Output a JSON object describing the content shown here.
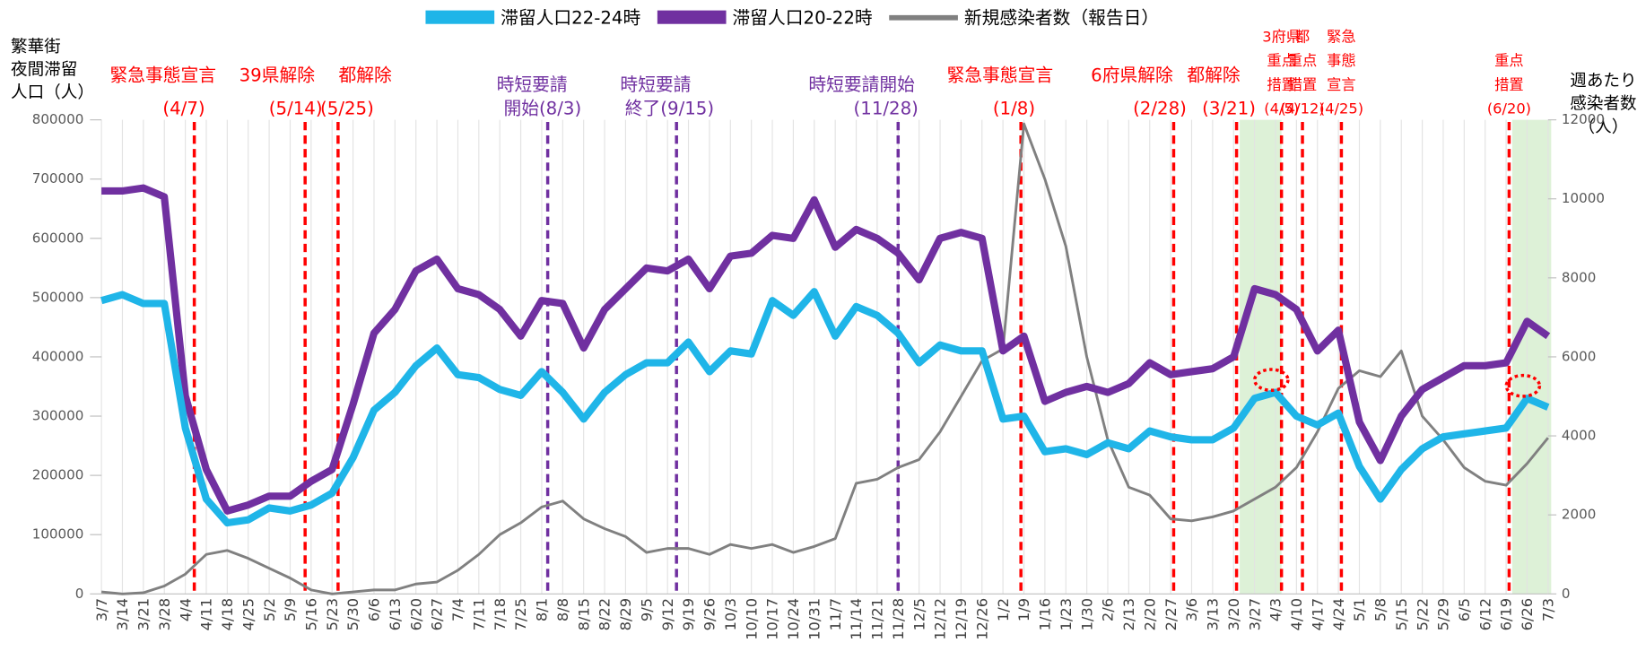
{
  "chart_data": {
    "type": "line",
    "y_label": [
      "繁華街",
      "夜間滞留",
      "人口（人）"
    ],
    "y2_label": [
      "週あたり",
      "感染者数",
      "（人）"
    ],
    "categories": [
      "3/7",
      "3/14",
      "3/21",
      "3/28",
      "4/4",
      "4/11",
      "4/18",
      "4/25",
      "5/2",
      "5/9",
      "5/16",
      "5/23",
      "5/30",
      "6/6",
      "6/13",
      "6/20",
      "6/27",
      "7/4",
      "7/11",
      "7/18",
      "7/25",
      "8/1",
      "8/8",
      "8/15",
      "8/22",
      "8/29",
      "9/5",
      "9/12",
      "9/19",
      "9/26",
      "10/3",
      "10/10",
      "10/17",
      "10/24",
      "10/31",
      "11/7",
      "11/14",
      "11/21",
      "11/28",
      "12/5",
      "12/12",
      "12/19",
      "12/26",
      "1/2",
      "1/9",
      "1/16",
      "1/23",
      "1/30",
      "2/6",
      "2/13",
      "2/20",
      "2/27",
      "3/6",
      "3/13",
      "3/20",
      "3/27",
      "4/3",
      "4/10",
      "4/17",
      "4/24",
      "5/1",
      "5/8",
      "5/15",
      "5/22",
      "5/29",
      "6/5",
      "6/12",
      "6/19",
      "6/26",
      "7/3"
    ],
    "series": [
      {
        "name": "滞留人口22-24時",
        "color": "#1fb5e8",
        "values": [
          495000,
          505000,
          490000,
          490000,
          280000,
          160000,
          120000,
          125000,
          145000,
          140000,
          150000,
          170000,
          230000,
          310000,
          340000,
          385000,
          415000,
          370000,
          365000,
          345000,
          335000,
          375000,
          340000,
          295000,
          340000,
          370000,
          390000,
          390000,
          425000,
          375000,
          410000,
          405000,
          495000,
          470000,
          510000,
          435000,
          485000,
          470000,
          440000,
          390000,
          420000,
          410000,
          410000,
          295000,
          300000,
          240000,
          245000,
          235000,
          255000,
          245000,
          275000,
          265000,
          260000,
          260000,
          280000,
          330000,
          340000,
          300000,
          285000,
          305000,
          215000,
          160000,
          210000,
          245000,
          265000,
          270000,
          275000,
          280000,
          330000,
          315000
        ]
      },
      {
        "name": "滞留人口20-22時",
        "color": "#7030a0",
        "values": [
          680000,
          680000,
          685000,
          670000,
          334000,
          210000,
          140000,
          150000,
          165000,
          165000,
          190000,
          210000,
          320000,
          440000,
          480000,
          545000,
          565000,
          515000,
          505000,
          480000,
          435000,
          495000,
          490000,
          415000,
          480000,
          515000,
          550000,
          545000,
          565000,
          515000,
          570000,
          575000,
          605000,
          600000,
          665000,
          585000,
          615000,
          600000,
          575000,
          530000,
          600000,
          610000,
          600000,
          410000,
          435000,
          325000,
          340000,
          350000,
          340000,
          355000,
          390000,
          370000,
          375000,
          380000,
          400000,
          515000,
          505000,
          480000,
          410000,
          445000,
          290000,
          225000,
          300000,
          345000,
          365000,
          385000,
          385000,
          390000,
          460000,
          435000
        ]
      },
      {
        "name": "新規感染者数（報告日）",
        "color": "#808080",
        "axis": "y2",
        "values": [
          50,
          0,
          30,
          200,
          500,
          1000,
          1100,
          900,
          650,
          400,
          100,
          0,
          50,
          100,
          100,
          250,
          300,
          600,
          1000,
          1500,
          1800,
          2200,
          2350,
          1900,
          1650,
          1450,
          1050,
          1150,
          1150,
          1000,
          1250,
          1150,
          1250,
          1050,
          1200,
          1400,
          2800,
          2900,
          3200,
          3400,
          4100,
          5000,
          5900,
          6200,
          11900,
          10500,
          8800,
          6000,
          3900,
          2700,
          2500,
          1900,
          1850,
          1950,
          2100,
          2400,
          2700,
          3200,
          4100,
          5200,
          5650,
          5500,
          6150,
          4500,
          3900,
          3200,
          2850,
          2750,
          3300,
          3950
        ]
      }
    ],
    "ylim": [
      0,
      800000
    ],
    "yticks": [
      0,
      100000,
      200000,
      300000,
      400000,
      500000,
      600000,
      700000,
      800000
    ],
    "y2lim": [
      0,
      12000
    ],
    "y2ticks": [
      0,
      2000,
      4000,
      6000,
      8000,
      10000,
      12000
    ],
    "legend": "top",
    "grid": "x",
    "events": [
      {
        "color": "#ff0000",
        "lines": [
          "緊急事態宣言",
          "(4/7)"
        ]
      },
      {
        "color": "#ff0000",
        "lines": [
          "39県解除",
          "(5/14)"
        ]
      },
      {
        "color": "#ff0000",
        "lines": [
          "都解除",
          "(5/25)"
        ]
      },
      {
        "color": "#7030a0",
        "lines": [
          "時短要請",
          "開始(8/3)"
        ]
      },
      {
        "color": "#7030a0",
        "lines": [
          "時短要請",
          "終了(9/15)"
        ]
      },
      {
        "color": "#7030a0",
        "lines": [
          "時短要請開始",
          "(11/28)"
        ]
      },
      {
        "color": "#ff0000",
        "lines": [
          "緊急事態宣言",
          "(1/8)"
        ]
      },
      {
        "color": "#ff0000",
        "lines": [
          "6府県解除",
          "(2/28)"
        ]
      },
      {
        "color": "#ff0000",
        "lines": [
          "都解除",
          "(3/21)"
        ]
      },
      {
        "color": "#ff0000",
        "lines": [
          "3府県",
          "重点",
          "措置",
          "(4/5)"
        ]
      },
      {
        "color": "#ff0000",
        "lines": [
          "都",
          "重点",
          "措置",
          "(4/12)"
        ]
      },
      {
        "color": "#ff0000",
        "lines": [
          "緊急",
          "事態",
          "宣言",
          "(4/25)"
        ]
      },
      {
        "color": "#ff0000",
        "lines": [
          "重点",
          "措置",
          "(6/20)"
        ]
      }
    ]
  }
}
